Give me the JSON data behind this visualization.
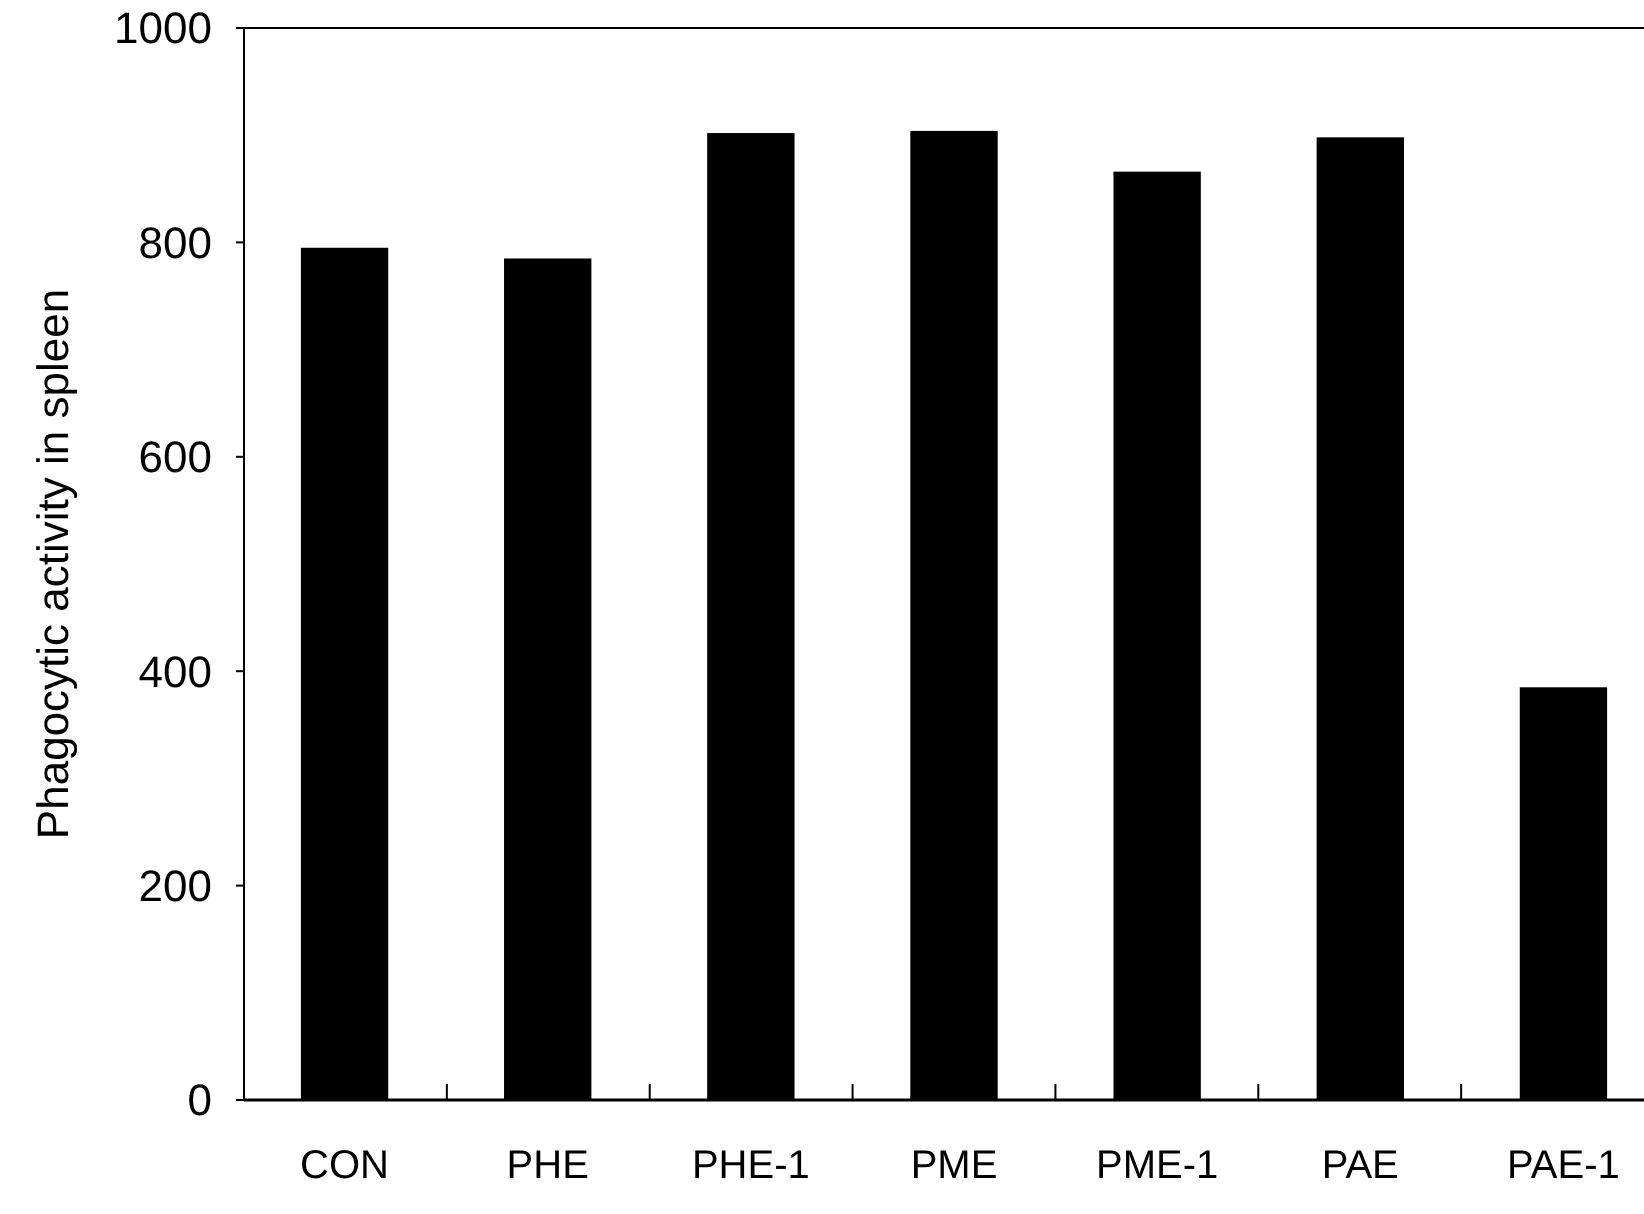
{
  "chart_data": {
    "type": "bar",
    "ylabel": "Phagocytic activity in spleen",
    "categories": [
      "CON",
      "PHE",
      "PHE-1",
      "PME",
      "PME-1",
      "PAE",
      "PAE-1"
    ],
    "values": [
      795,
      785,
      902,
      904,
      866,
      898,
      385
    ],
    "color": "#000000",
    "ylim": [
      0,
      1000
    ],
    "yticks": [
      0,
      200,
      400,
      600,
      800,
      1000
    ],
    "grid": false
  }
}
